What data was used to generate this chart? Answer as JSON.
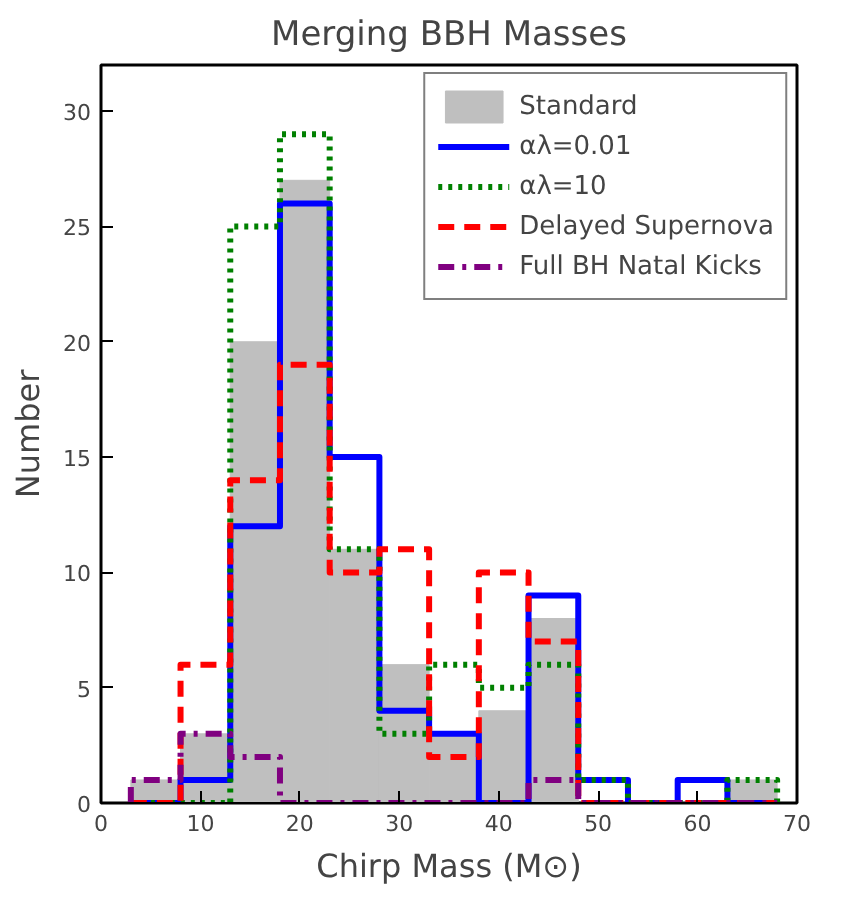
{
  "chart_data": {
    "type": "histogram",
    "title": "Merging BBH Masses",
    "xlabel": "Chirp Mass (M⊙)",
    "ylabel": "Number",
    "bins": [
      3,
      8,
      13,
      18,
      23,
      28,
      33,
      38,
      43,
      48,
      53,
      58,
      63,
      68
    ],
    "series": [
      {
        "name": "Standard",
        "color": "#bfbfbf",
        "values": [
          1,
          3,
          20,
          27,
          11,
          6,
          3,
          4,
          8,
          0,
          0,
          0,
          1
        ]
      },
      {
        "name": "αλ=0.01",
        "line_style": "solid",
        "color": "#0000ff",
        "values": [
          0,
          1,
          12,
          26,
          15,
          4,
          3,
          0,
          9,
          1,
          0,
          1,
          0
        ]
      },
      {
        "name": "αλ=10",
        "line_style": "dotted",
        "color": "#008000",
        "values": [
          0,
          0,
          25,
          29,
          11,
          3,
          6,
          5,
          6,
          1,
          0,
          0,
          1
        ]
      },
      {
        "name": "Delayed Supernova",
        "line_style": "dashed",
        "color": "#ff0000",
        "values": [
          0,
          6,
          14,
          19,
          10,
          11,
          2,
          10,
          7,
          0,
          0,
          0,
          0
        ]
      },
      {
        "name": "Full BH Natal Kicks",
        "line_style": "dashdot",
        "color": "#800080",
        "values": [
          1,
          3,
          2,
          0,
          0,
          0,
          0,
          0,
          1,
          0,
          0,
          0,
          0
        ]
      }
    ],
    "xlim": [
      0,
      70
    ],
    "xticks": [
      0,
      10,
      20,
      30,
      40,
      50,
      60,
      70
    ],
    "ylim": [
      0,
      32
    ],
    "yticks": [
      0,
      5,
      10,
      15,
      20,
      25,
      30
    ],
    "grid": false,
    "legend": "top right"
  }
}
